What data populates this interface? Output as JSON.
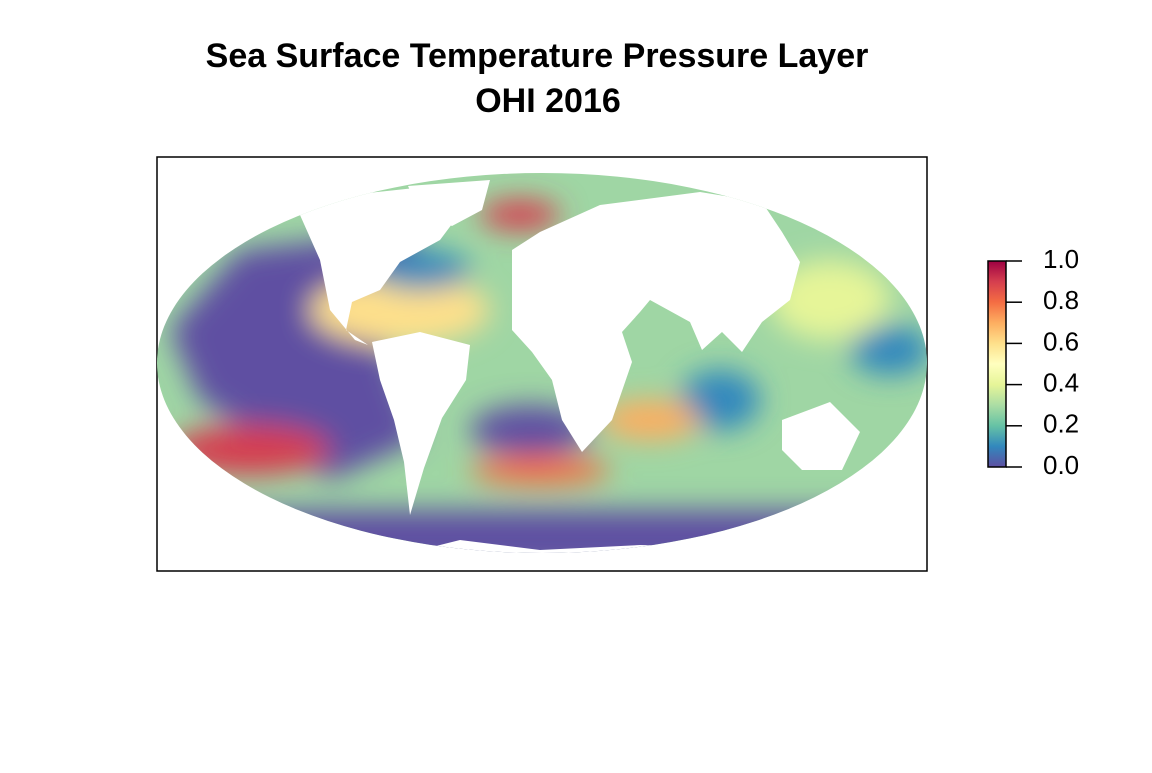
{
  "title": [
    "Sea Surface Temperature Pressure Layer",
    "OHI 2016"
  ],
  "legend": {
    "lim": [
      0,
      1
    ],
    "ticks": [
      {
        "value": 0,
        "label": "0.0"
      },
      0.2,
      0.4,
      0.6,
      0.8,
      {
        "value": 1,
        "label": "1.0"
      }
    ],
    "colors": [
      "#5e4fa2",
      "#3288bd",
      "#66c2a5",
      "#abdda4",
      "#e6f598",
      "#ffffbf",
      "#fee08b",
      "#fdae61",
      "#f46d43",
      "#d53e4f",
      "#9e0142"
    ]
  }
}
